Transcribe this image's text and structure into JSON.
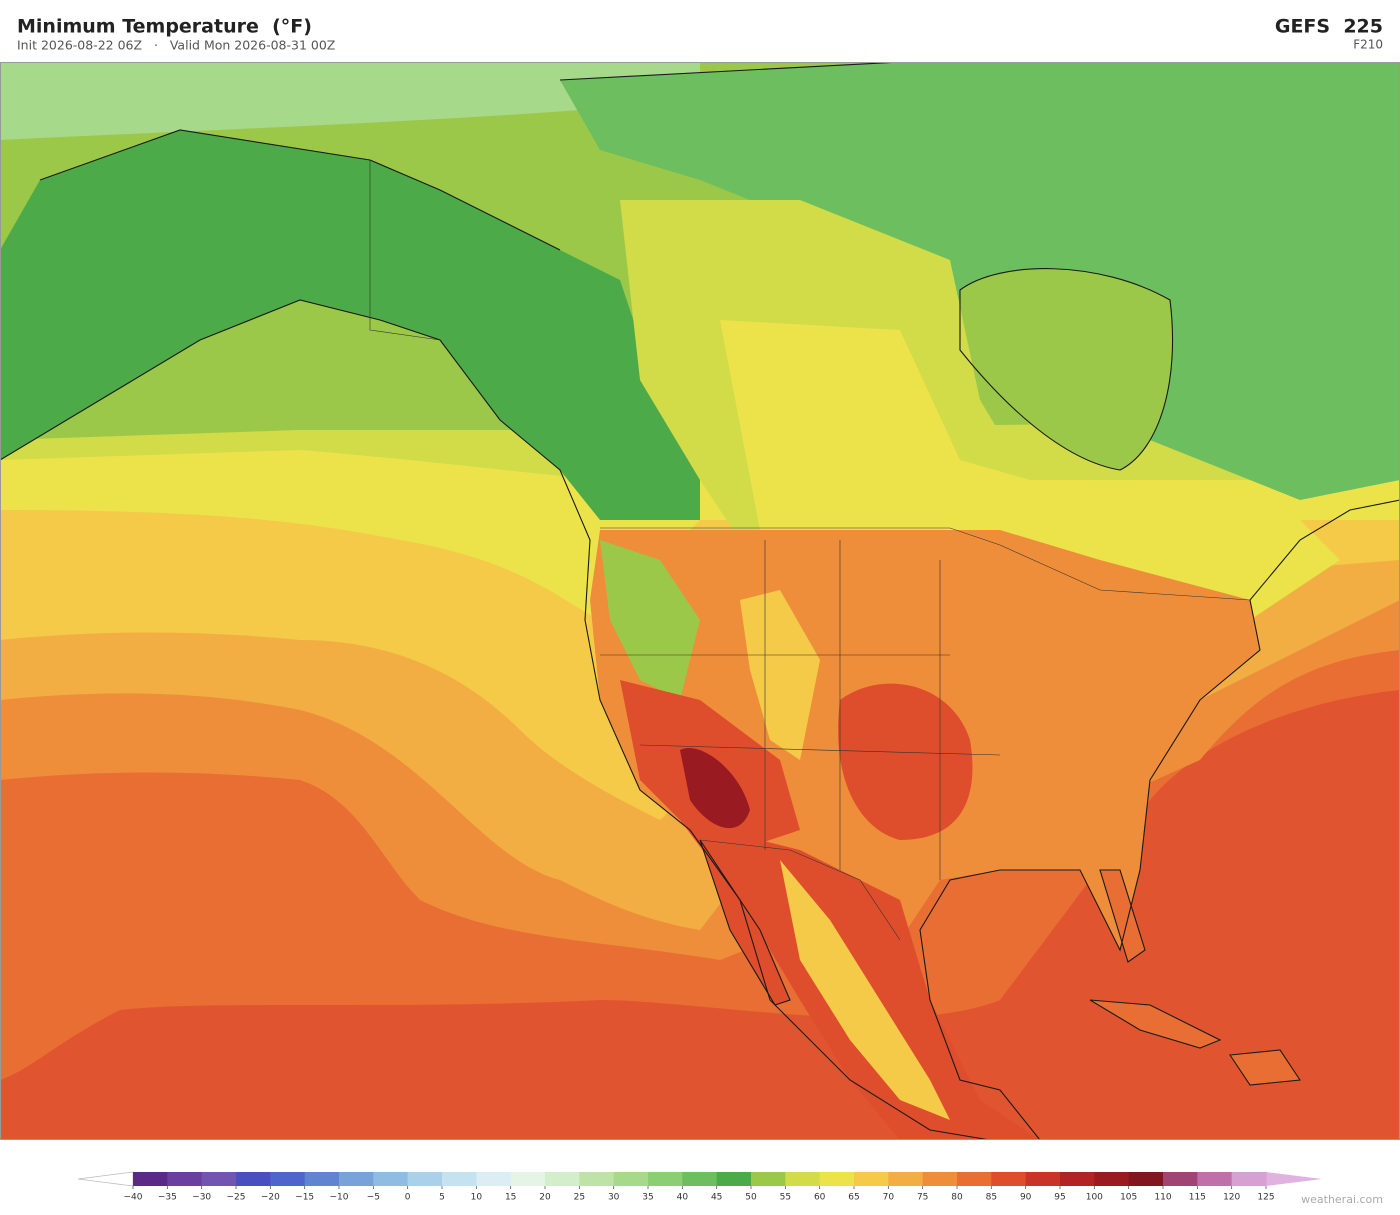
{
  "header": {
    "title": "Minimum Temperature  (°F)",
    "subtitle": "Init 2026-08-22 06Z   ·   Valid Mon 2026-08-31 00Z",
    "model": "GEFS  225",
    "forecast": "F210"
  },
  "colorbar": {
    "ticks": [
      {
        "value": -40,
        "label": "−40"
      },
      {
        "value": -35,
        "label": "−35"
      },
      {
        "value": -30,
        "label": "−30"
      },
      {
        "value": -25,
        "label": "−25"
      },
      {
        "value": -20,
        "label": "−20"
      },
      {
        "value": -15,
        "label": "−15"
      },
      {
        "value": -10,
        "label": "−10"
      },
      {
        "value": -5,
        "label": "−5"
      },
      0,
      5,
      10,
      15,
      20,
      25,
      30,
      35,
      40,
      45,
      50,
      55,
      60,
      65,
      70,
      75,
      80,
      85,
      90,
      95,
      100,
      105,
      110,
      115,
      120,
      125
    ],
    "colors": [
      "#5b2a86",
      "#6b3fa0",
      "#7255b0",
      "#4a4fc0",
      "#4e66cc",
      "#6184d2",
      "#78a2d8",
      "#90bce2",
      "#a9d2ea",
      "#c4e2f0",
      "#dceef4",
      "#e6f4e6",
      "#d4edca",
      "#bfe3a6",
      "#a6d98a",
      "#8ccf72",
      "#6cbe5e",
      "#4caa48",
      "#9cc84a",
      "#d2db48",
      "#ece34a",
      "#f4ca48",
      "#f2ae42",
      "#ee8e3a",
      "#e96e34",
      "#de4e2c",
      "#c93328",
      "#b22424",
      "#9a1a22",
      "#821620",
      "#a04474",
      "#c070a8",
      "#d6a0d2"
    ],
    "under_color": "#ffffff",
    "over_color": "#e0b2e0"
  },
  "watermark": "weatherai.com"
}
